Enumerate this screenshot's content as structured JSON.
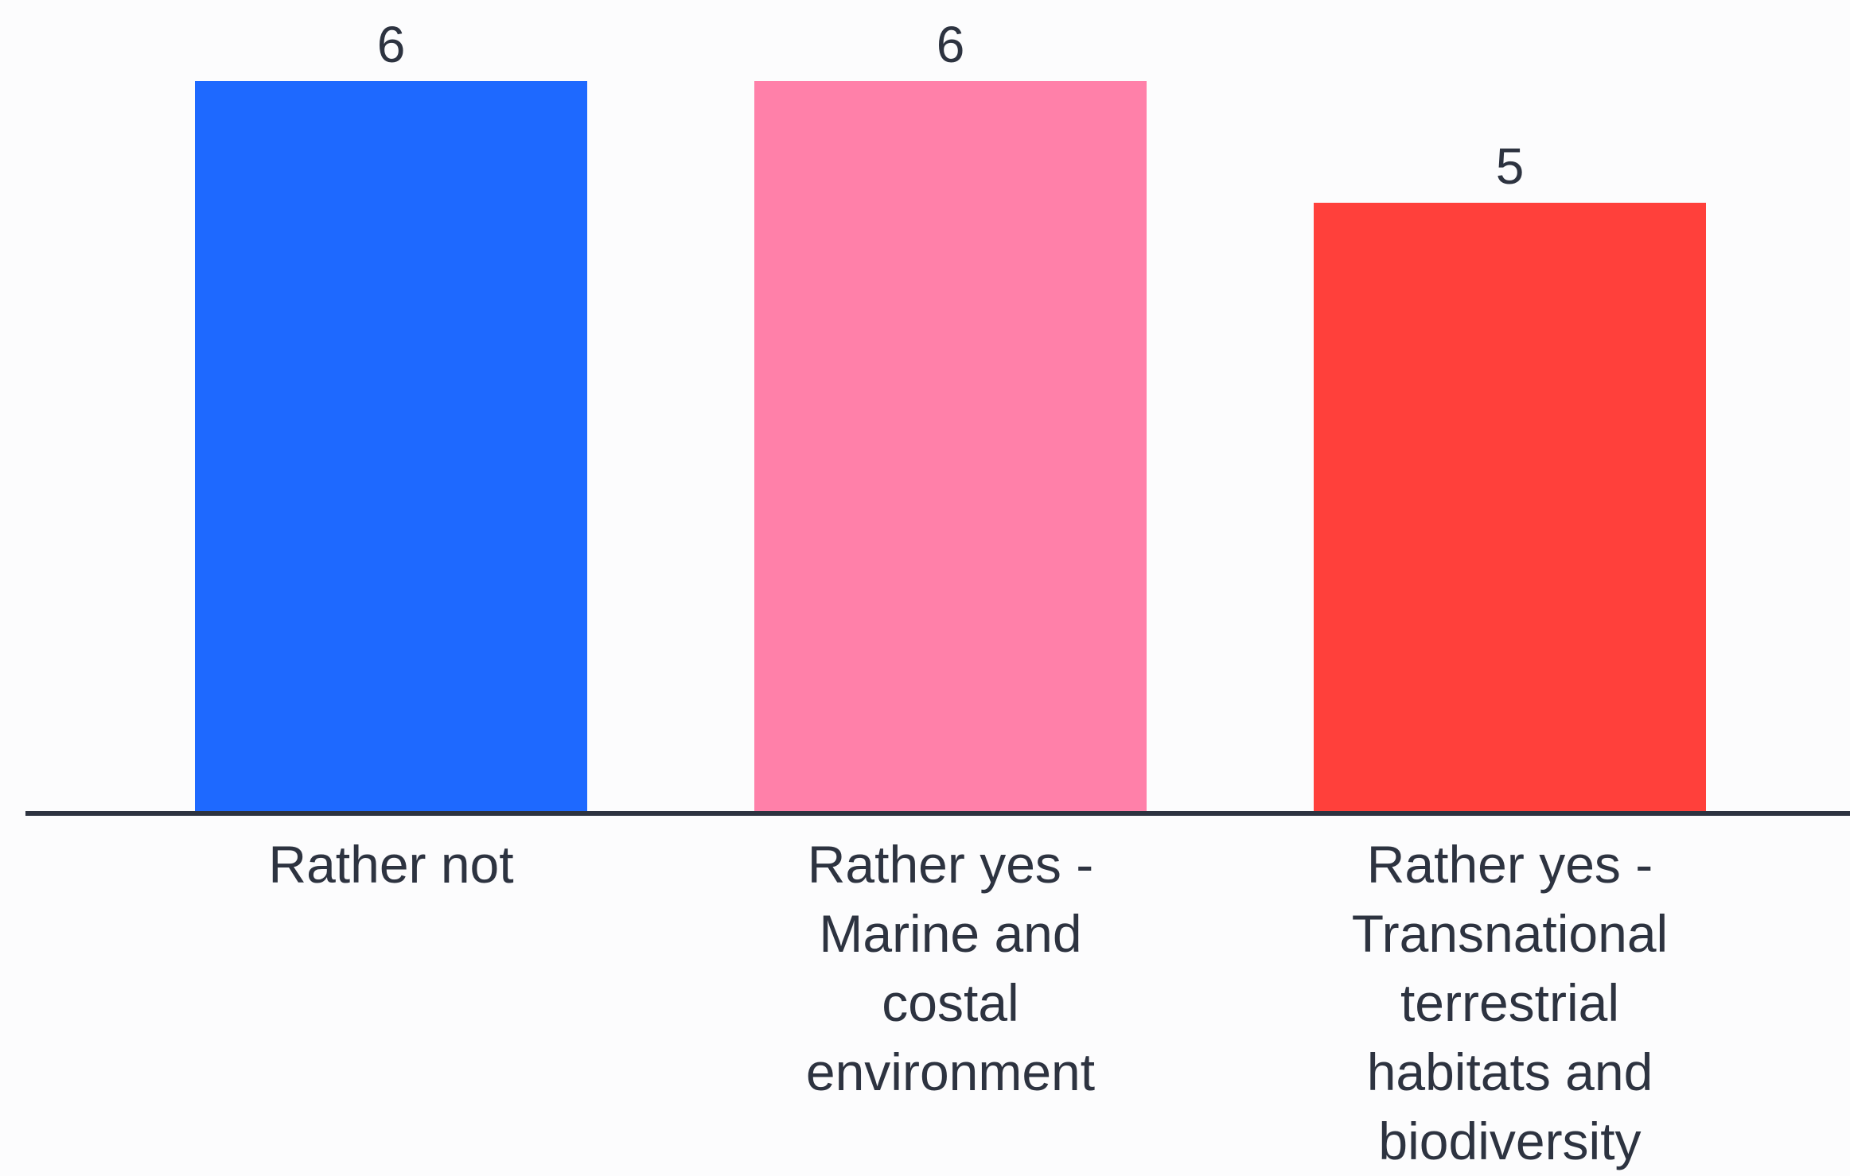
{
  "chart_data": {
    "type": "bar",
    "title": "",
    "xlabel": "",
    "ylabel": "",
    "categories": [
      [
        "Rather not"
      ],
      [
        "Rather yes -",
        "Marine and",
        "costal",
        "environment"
      ],
      [
        "Rather yes -",
        "Transnational",
        "terrestrial",
        "habitats and",
        "biodiversity"
      ]
    ],
    "values": [
      6,
      6,
      5
    ],
    "value_labels": [
      "6",
      "6",
      "5"
    ],
    "colors": [
      "#1e69ff",
      "#ff80a9",
      "#ff403b"
    ],
    "ylim": [
      0,
      6
    ],
    "grid": false,
    "legend": "none",
    "axis_color": "#2d3340"
  }
}
